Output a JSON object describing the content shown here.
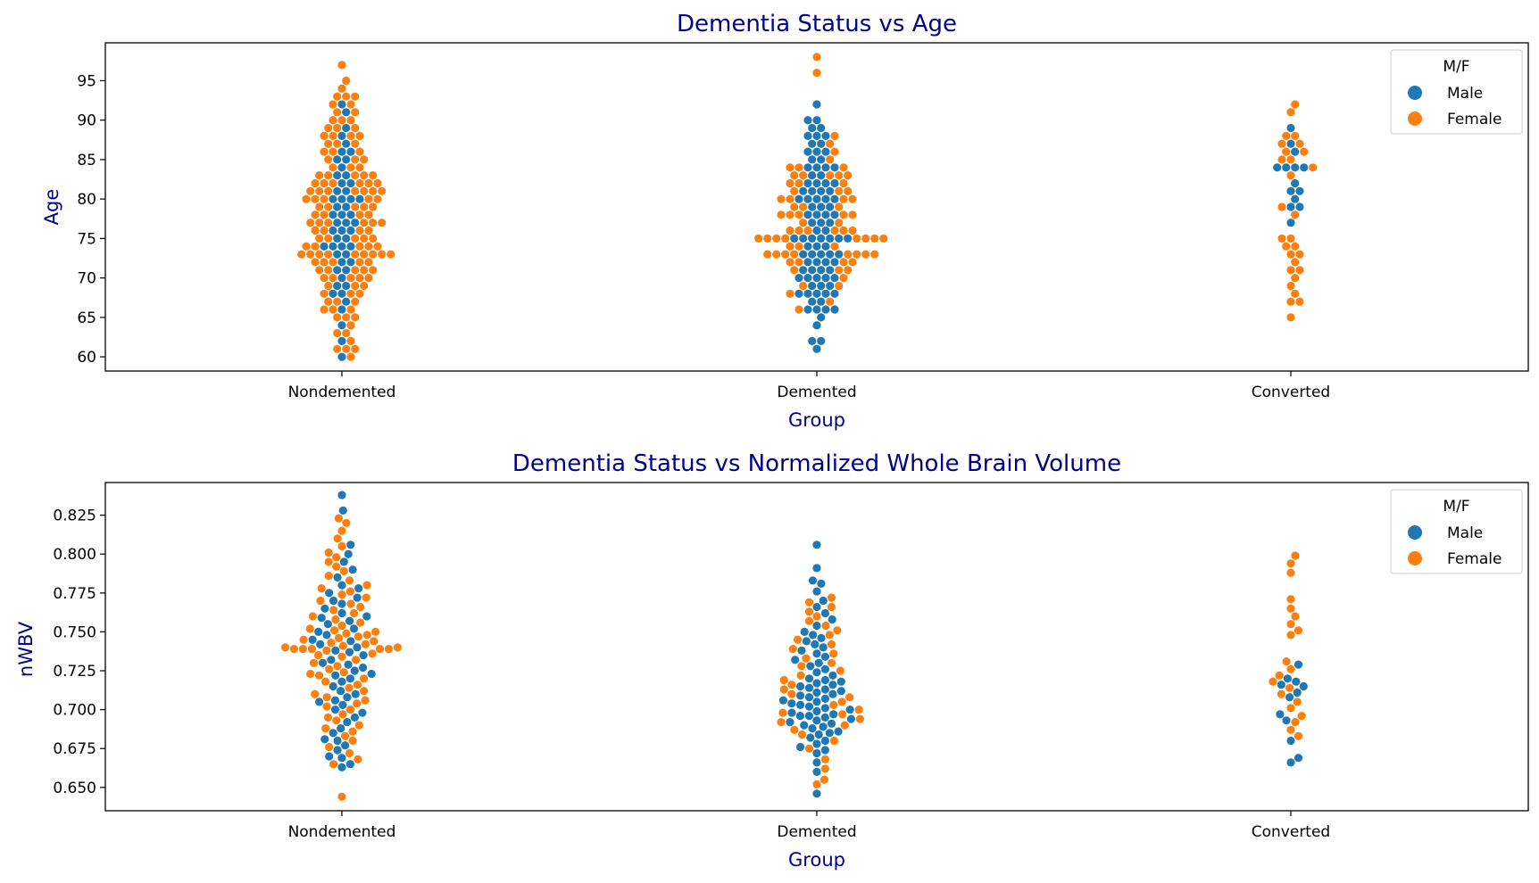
{
  "colors": {
    "male": "#1f77b4",
    "female": "#ff7f0e",
    "title": "#00008b",
    "axis": "#000000"
  },
  "legend": {
    "title": "M/F",
    "placement": "upper right",
    "entries": [
      "Male",
      "Female"
    ]
  },
  "chart_data": [
    {
      "type": "swarm",
      "title": "Dementia Status vs Age",
      "xlabel": "Group",
      "ylabel": "Age",
      "categories": [
        "Nondemented",
        "Demented",
        "Converted"
      ],
      "ylim": [
        58.2,
        99.8
      ],
      "yticks": [
        60,
        65,
        70,
        75,
        80,
        85,
        90,
        95
      ],
      "ytick_labels": [
        "60",
        "65",
        "70",
        "75",
        "80",
        "85",
        "90",
        "95"
      ],
      "series": [
        {
          "name": "Male",
          "values": [
            [
              60,
              62,
              64,
              66,
              67,
              68,
              68,
              69,
              69,
              70,
              71,
              71,
              72,
              72,
              73,
              73,
              74,
              74,
              74,
              74,
              75,
              75,
              76,
              76,
              76,
              77,
              77,
              77,
              78,
              78,
              78,
              79,
              79,
              80,
              80,
              80,
              80,
              81,
              81,
              82,
              82,
              83,
              83,
              84,
              85,
              85,
              86,
              86,
              87,
              88,
              89,
              91,
              92
            ],
            [
              61,
              62,
              62,
              64,
              65,
              66,
              66,
              66,
              66,
              67,
              67,
              68,
              68,
              68,
              68,
              68,
              69,
              69,
              69,
              70,
              70,
              70,
              70,
              70,
              71,
              71,
              71,
              71,
              72,
              72,
              72,
              72,
              73,
              73,
              73,
              73,
              73,
              74,
              74,
              74,
              75,
              75,
              75,
              75,
              75,
              75,
              75,
              76,
              76,
              77,
              77,
              77,
              78,
              78,
              78,
              78,
              79,
              79,
              79,
              80,
              80,
              80,
              80,
              80,
              81,
              81,
              81,
              81,
              82,
              82,
              82,
              82,
              83,
              83,
              84,
              84,
              84,
              84,
              85,
              85,
              86,
              86,
              86,
              87,
              87,
              88,
              88,
              88,
              89,
              89,
              90,
              90,
              92
            ],
            [
              77,
              79,
              79,
              80,
              81,
              81,
              82,
              84,
              84,
              84,
              84,
              86,
              87,
              89
            ]
          ]
        },
        {
          "name": "Female",
          "values": [
            [
              60,
              61,
              61,
              61,
              62,
              63,
              63,
              64,
              65,
              65,
              65,
              66,
              66,
              66,
              67,
              67,
              67,
              68,
              68,
              68,
              69,
              69,
              69,
              70,
              70,
              70,
              70,
              70,
              71,
              71,
              71,
              71,
              71,
              72,
              72,
              72,
              72,
              72,
              73,
              73,
              73,
              73,
              73,
              73,
              73,
              73,
              73,
              74,
              74,
              74,
              74,
              74,
              75,
              75,
              75,
              75,
              75,
              76,
              76,
              76,
              76,
              77,
              77,
              77,
              77,
              77,
              77,
              78,
              78,
              78,
              78,
              79,
              79,
              79,
              79,
              79,
              80,
              80,
              80,
              80,
              80,
              81,
              81,
              81,
              81,
              81,
              81,
              81,
              82,
              82,
              82,
              82,
              82,
              82,
              83,
              83,
              83,
              83,
              83,
              84,
              84,
              84,
              85,
              85,
              85,
              86,
              86,
              86,
              87,
              87,
              87,
              88,
              88,
              88,
              88,
              89,
              89,
              89,
              90,
              90,
              90,
              91,
              91,
              92,
              92,
              93,
              93,
              93,
              94,
              95,
              97
            ],
            [
              66,
              67,
              68,
              69,
              69,
              70,
              71,
              71,
              71,
              72,
              72,
              72,
              72,
              73,
              73,
              73,
              73,
              73,
              73,
              73,
              73,
              74,
              74,
              74,
              75,
              75,
              75,
              75,
              75,
              75,
              75,
              75,
              76,
              76,
              76,
              76,
              76,
              76,
              77,
              77,
              78,
              78,
              78,
              78,
              78,
              79,
              79,
              79,
              80,
              80,
              80,
              80,
              81,
              81,
              81,
              82,
              82,
              82,
              83,
              83,
              83,
              83,
              83,
              84,
              84,
              84,
              85,
              86,
              87,
              88,
              96,
              98
            ],
            [
              65,
              67,
              67,
              68,
              69,
              70,
              71,
              71,
              72,
              73,
              73,
              74,
              74,
              75,
              75,
              78,
              79,
              83,
              84,
              85,
              85,
              86,
              86,
              87,
              87,
              88,
              88,
              91,
              92
            ]
          ]
        }
      ]
    },
    {
      "type": "swarm",
      "title": "Dementia Status vs Normalized Whole Brain Volume",
      "xlabel": "Group",
      "ylabel": "nWBV",
      "categories": [
        "Nondemented",
        "Demented",
        "Converted"
      ],
      "ylim": [
        0.635,
        0.846
      ],
      "yticks": [
        0.65,
        0.675,
        0.7,
        0.725,
        0.75,
        0.775,
        0.8,
        0.825
      ],
      "ytick_labels": [
        "0.650",
        "0.675",
        "0.700",
        "0.725",
        "0.750",
        "0.775",
        "0.800",
        "0.825"
      ],
      "series": [
        {
          "name": "Male",
          "values": [
            [
              0.663,
              0.665,
              0.669,
              0.67,
              0.674,
              0.677,
              0.68,
              0.681,
              0.685,
              0.688,
              0.692,
              0.695,
              0.698,
              0.7,
              0.703,
              0.705,
              0.706,
              0.708,
              0.71,
              0.712,
              0.715,
              0.718,
              0.72,
              0.722,
              0.723,
              0.725,
              0.727,
              0.729,
              0.73,
              0.732,
              0.735,
              0.737,
              0.738,
              0.74,
              0.742,
              0.744,
              0.745,
              0.748,
              0.75,
              0.752,
              0.755,
              0.757,
              0.759,
              0.76,
              0.762,
              0.765,
              0.768,
              0.77,
              0.772,
              0.775,
              0.778,
              0.78,
              0.785,
              0.79,
              0.795,
              0.8,
              0.806,
              0.828,
              0.838
            ],
            [
              0.646,
              0.66,
              0.666,
              0.672,
              0.674,
              0.676,
              0.678,
              0.68,
              0.682,
              0.684,
              0.685,
              0.686,
              0.688,
              0.689,
              0.69,
              0.691,
              0.692,
              0.693,
              0.694,
              0.695,
              0.696,
              0.696,
              0.697,
              0.698,
              0.699,
              0.7,
              0.701,
              0.702,
              0.703,
              0.704,
              0.705,
              0.706,
              0.707,
              0.708,
              0.709,
              0.71,
              0.711,
              0.712,
              0.713,
              0.714,
              0.715,
              0.716,
              0.717,
              0.718,
              0.719,
              0.72,
              0.722,
              0.724,
              0.726,
              0.728,
              0.73,
              0.732,
              0.734,
              0.736,
              0.738,
              0.74,
              0.742,
              0.744,
              0.746,
              0.748,
              0.75,
              0.754,
              0.758,
              0.762,
              0.766,
              0.77,
              0.776,
              0.781,
              0.783,
              0.791,
              0.806
            ],
            [
              0.666,
              0.669,
              0.68,
              0.693,
              0.697,
              0.708,
              0.711,
              0.715,
              0.716,
              0.718,
              0.72,
              0.729
            ]
          ]
        },
        {
          "name": "Female",
          "values": [
            [
              0.644,
              0.665,
              0.668,
              0.672,
              0.676,
              0.68,
              0.683,
              0.686,
              0.688,
              0.69,
              0.693,
              0.695,
              0.697,
              0.7,
              0.702,
              0.704,
              0.706,
              0.708,
              0.71,
              0.712,
              0.714,
              0.716,
              0.718,
              0.72,
              0.722,
              0.723,
              0.724,
              0.726,
              0.728,
              0.73,
              0.732,
              0.734,
              0.735,
              0.736,
              0.738,
              0.739,
              0.739,
              0.739,
              0.739,
              0.739,
              0.74,
              0.74,
              0.741,
              0.742,
              0.743,
              0.744,
              0.745,
              0.746,
              0.747,
              0.748,
              0.749,
              0.75,
              0.751,
              0.752,
              0.754,
              0.756,
              0.758,
              0.76,
              0.762,
              0.764,
              0.766,
              0.768,
              0.77,
              0.772,
              0.774,
              0.776,
              0.778,
              0.78,
              0.783,
              0.786,
              0.789,
              0.792,
              0.795,
              0.798,
              0.801,
              0.805,
              0.81,
              0.815,
              0.82,
              0.823
            ],
            [
              0.652,
              0.655,
              0.662,
              0.668,
              0.675,
              0.68,
              0.684,
              0.687,
              0.69,
              0.692,
              0.694,
              0.697,
              0.698,
              0.7,
              0.703,
              0.705,
              0.708,
              0.71,
              0.713,
              0.716,
              0.719,
              0.722,
              0.725,
              0.728,
              0.73,
              0.733,
              0.736,
              0.739,
              0.742,
              0.745,
              0.748,
              0.751,
              0.754,
              0.757,
              0.76,
              0.763,
              0.766,
              0.769,
              0.772
            ],
            [
              0.683,
              0.687,
              0.692,
              0.696,
              0.701,
              0.705,
              0.71,
              0.714,
              0.718,
              0.722,
              0.726,
              0.731,
              0.748,
              0.751,
              0.755,
              0.76,
              0.765,
              0.771,
              0.788,
              0.794,
              0.799
            ]
          ]
        }
      ]
    }
  ]
}
